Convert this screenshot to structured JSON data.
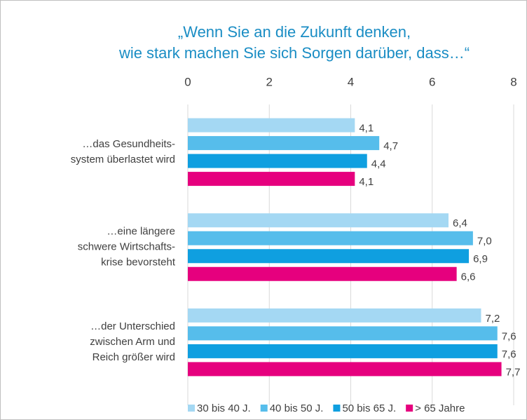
{
  "chart_data": {
    "type": "hbar",
    "title": [
      "„Wenn Sie an die Zukunft denken,",
      "wie stark machen Sie sich Sorgen darüber, dass…“"
    ],
    "categories": [
      [
        "…das Gesundheits-",
        "system überlastet wird"
      ],
      [
        "…eine längere",
        "schwere Wirtschafts-",
        "krise bevorsteht"
      ],
      [
        "…der Unterschied",
        "zwischen Arm und",
        "Reich größer wird"
      ]
    ],
    "series": [
      {
        "name": "30 bis 40 J.",
        "color": "#a4d8f3",
        "values": [
          4.1,
          6.4,
          7.2
        ],
        "value_labels": [
          "4,1",
          "6,4",
          "7,2"
        ]
      },
      {
        "name": "40 bis 50 J.",
        "color": "#56bdeb",
        "values": [
          4.7,
          7.0,
          7.6
        ],
        "value_labels": [
          "4,7",
          "7,0",
          "7,6"
        ]
      },
      {
        "name": "50 bis 65 J.",
        "color": "#0f9fe0",
        "values": [
          4.4,
          6.9,
          7.6
        ],
        "value_labels": [
          "4,4",
          "6,9",
          "7,6"
        ]
      },
      {
        "name": "> 65 Jahre",
        "color": "#e6007e",
        "values": [
          4.1,
          6.6,
          7.7
        ],
        "value_labels": [
          "4,1",
          "6,6",
          "7,7"
        ]
      }
    ],
    "xlim": [
      0,
      8
    ],
    "xticks": [
      0,
      2,
      4,
      6,
      8
    ],
    "grid": true,
    "legend": "bottom"
  }
}
